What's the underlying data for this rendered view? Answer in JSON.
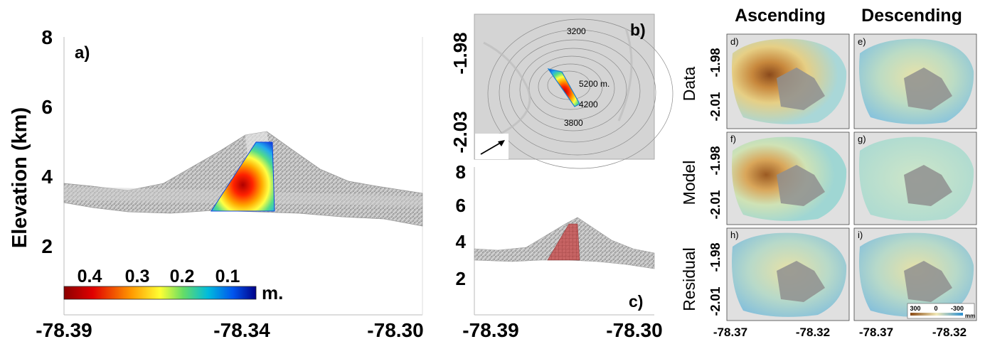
{
  "panel_a": {
    "label": "a)",
    "ylabel": "Elevation (km)",
    "yticks": [
      "8",
      "6",
      "4",
      "2"
    ],
    "xticks": [
      "-78.39",
      "-78.34",
      "-78.30"
    ],
    "colorbar": {
      "ticks": [
        "0.4",
        "0.3",
        "0.2",
        "0.1"
      ],
      "unit": "m."
    }
  },
  "panel_b": {
    "label": "b)",
    "yticks": [
      "-1.98",
      "-2.03"
    ],
    "contours": [
      "3200",
      "5200 m.",
      "4200",
      "3800"
    ]
  },
  "panel_c": {
    "label": "c)",
    "yticks": [
      "8",
      "6",
      "4",
      "2"
    ],
    "xticks": [
      "-78.39",
      "-78.30"
    ]
  },
  "grid": {
    "col_titles": [
      "Ascending",
      "Descending"
    ],
    "row_titles": [
      "Data",
      "Model",
      "Residual"
    ],
    "panel_labels": [
      "d)",
      "e)",
      "f)",
      "g)",
      "h)",
      "i)"
    ],
    "yticks": [
      "-1.98",
      "-2.01"
    ],
    "xticks": [
      "-78.37",
      "-78.32",
      "-78.37",
      "-78.32"
    ],
    "colorbar": {
      "ticks": [
        "300",
        "0",
        "-300"
      ],
      "unit": "mm"
    }
  }
}
